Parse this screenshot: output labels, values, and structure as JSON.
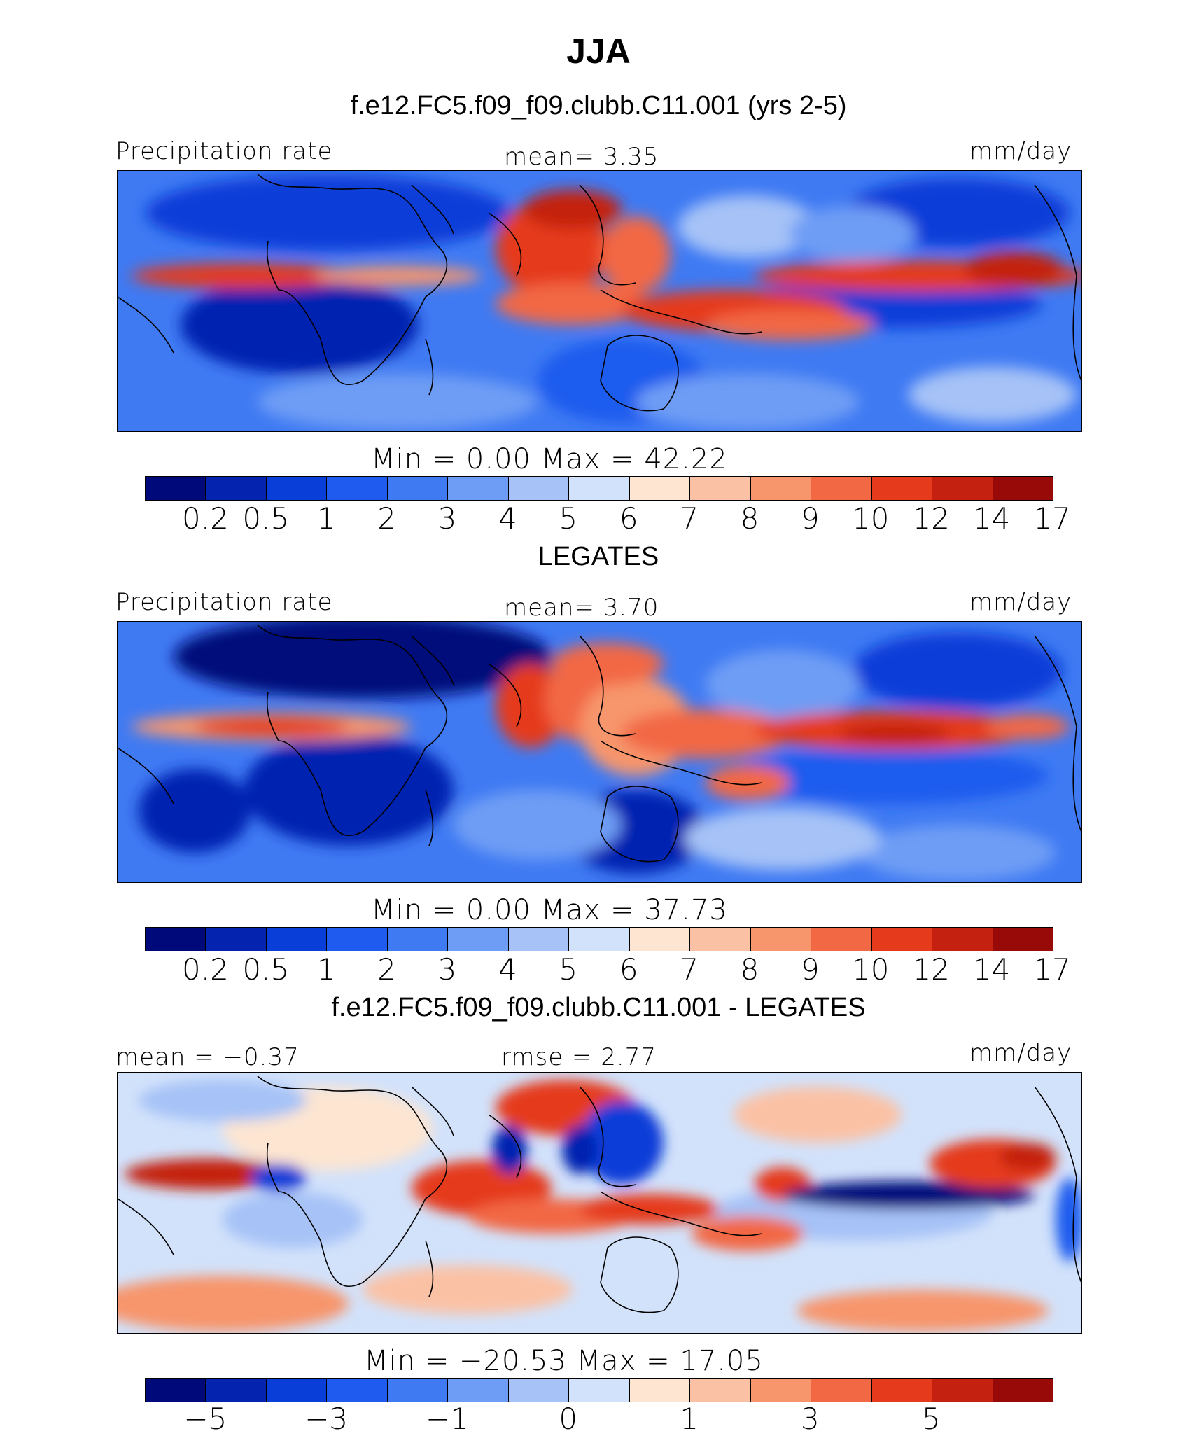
{
  "title": "JJA",
  "colors": {
    "abs_palette": [
      "#00097a",
      "#0424b0",
      "#0a3ed8",
      "#1f5bee",
      "#3f7af3",
      "#6e9df5",
      "#a6c2f7",
      "#d2e2fb",
      "#fde5d1",
      "#fbc1a4",
      "#f7956c",
      "#f26744",
      "#e53a1c",
      "#c42110",
      "#980a08"
    ],
    "diff_palette": [
      "#00097a",
      "#0424b0",
      "#0a3ed8",
      "#1f5bee",
      "#3f7af3",
      "#6e9df5",
      "#a6c2f7",
      "#d2e2fb",
      "#fde5d1",
      "#fbc1a4",
      "#f7956c",
      "#f26744",
      "#e53a1c",
      "#c42110",
      "#980a08"
    ]
  },
  "panels": [
    {
      "heading": "f.e12.FC5.f09_f09.clubb.C11.001 (yrs 2-5)",
      "left_label": "Precipitation rate",
      "center_label": "mean=    3.35",
      "right_label": "mm/day",
      "minmax": "Min  =      0.00  Max  =    42.22",
      "ticks": [
        "0.2",
        "0.5",
        "1",
        "2",
        "3",
        "4",
        "5",
        "6",
        "7",
        "8",
        "9",
        "10",
        "12",
        "14",
        "17"
      ]
    },
    {
      "heading": "LEGATES",
      "left_label": "Precipitation rate",
      "center_label": "mean=    3.70",
      "right_label": "mm/day",
      "minmax": "Min  =      0.00  Max  =    37.73",
      "ticks": [
        "0.2",
        "0.5",
        "1",
        "2",
        "3",
        "4",
        "5",
        "6",
        "7",
        "8",
        "9",
        "10",
        "12",
        "14",
        "17"
      ]
    },
    {
      "heading": "f.e12.FC5.f09_f09.clubb.C11.001 - LEGATES",
      "left_label": "mean  =   −0.37",
      "center_label": "rmse  =    2.77",
      "right_label": "mm/day",
      "minmax": "Min  = −20.53  Max  =    17.05",
      "ticks": [
        "−5",
        "−3",
        "−1",
        "0",
        "1",
        "3",
        "5"
      ]
    }
  ]
}
